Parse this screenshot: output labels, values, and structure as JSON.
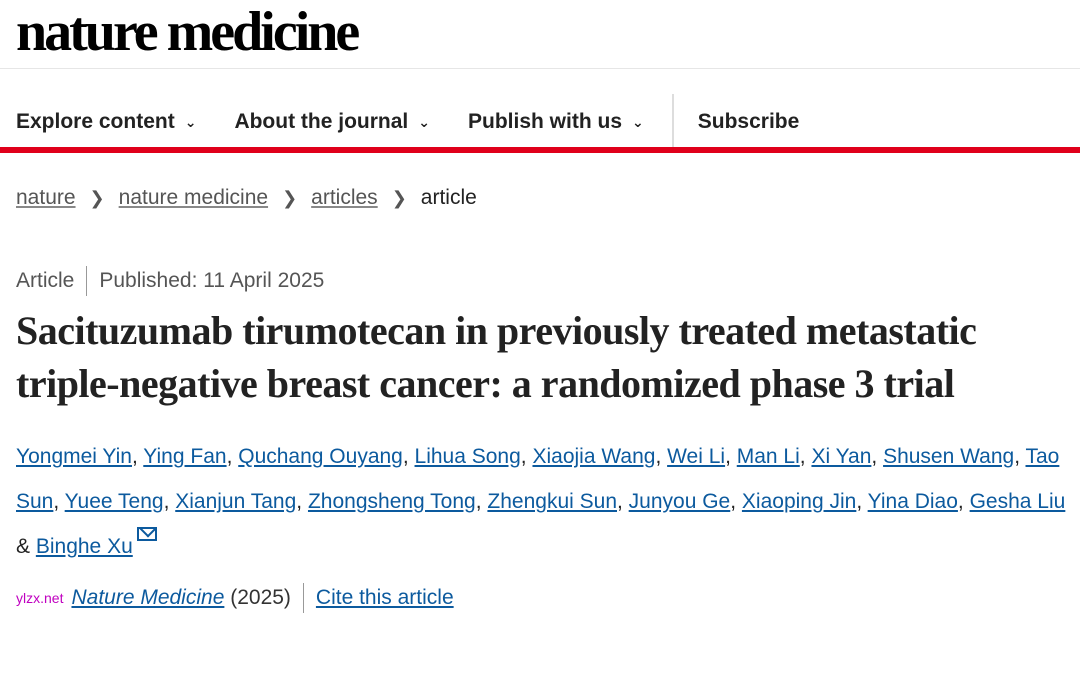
{
  "logo": "nature medicine",
  "nav": {
    "items": [
      "Explore content",
      "About the journal",
      "Publish with us"
    ],
    "subscribe": "Subscribe"
  },
  "breadcrumb": [
    "nature",
    "nature medicine",
    "articles",
    "article"
  ],
  "meta": {
    "type": "Article",
    "published": "Published: 11 April 2025"
  },
  "title": "Sacituzumab tirumotecan in previously treated metastatic triple-negative breast cancer: a randomized phase 3 trial",
  "authors": [
    "Yongmei Yin",
    "Ying Fan",
    "Quchang Ouyang",
    "Lihua Song",
    "Xiaojia Wang",
    "Wei Li",
    "Man Li",
    "Xi Yan",
    "Shusen Wang",
    "Tao Sun",
    "Yuee Teng",
    "Xianjun Tang",
    "Zhongsheng Tong",
    "Zhengkui Sun",
    "Junyou Ge",
    "Xiaoping Jin",
    "Yina Diao",
    "Gesha Liu",
    "Binghe Xu"
  ],
  "citation": {
    "journal": "Nature Medicine",
    "year": "(2025)",
    "cite_link": "Cite this article"
  },
  "watermark": "ylzx.net",
  "colors": {
    "accent": "#e0001b",
    "link": "#0c5a9e"
  }
}
